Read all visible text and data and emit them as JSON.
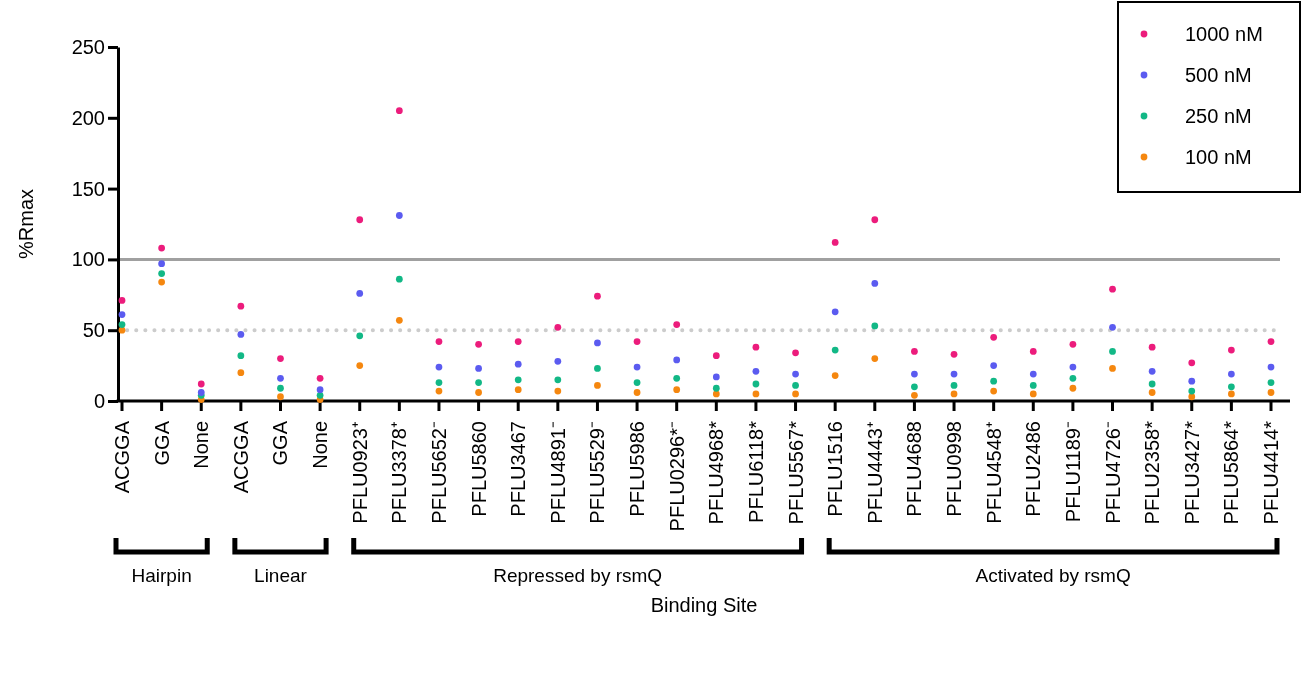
{
  "chart_data": {
    "type": "scatter",
    "xlabel": "Binding Site",
    "ylabel": "%Rmax",
    "categories": [
      "ACGGA",
      "GGA",
      "None",
      "ACGGA",
      "GGA",
      "None",
      "PFLU0923⁺",
      "PFLU3378⁺",
      "PFLU5652⁻",
      "PFLU5860",
      "PFLU3467",
      "PFLU4891⁻",
      "PFLU5529⁻",
      "PFLU5986",
      "PFLU0296*⁻",
      "PFLU4968*",
      "PFLU6118*",
      "PFLU5567*",
      "PFLU1516",
      "PFLU4443⁺",
      "PFLU4688",
      "PFLU0998",
      "PFLU4548⁺",
      "PFLU2486",
      "PFLU1189⁻",
      "PFLU4726⁻",
      "PFLU2358*",
      "PFLU3427*",
      "PFLU5864*",
      "PFLU4414*"
    ],
    "series": [
      {
        "name": "1000 nM",
        "color": "#ec1c7c",
        "values": [
          71,
          108,
          12,
          67,
          30,
          16,
          128,
          205,
          42,
          40,
          42,
          52,
          74,
          42,
          54,
          32,
          38,
          34,
          112,
          128,
          35,
          33,
          45,
          35,
          40,
          79,
          38,
          27,
          36,
          42
        ]
      },
      {
        "name": "500 nM",
        "color": "#5b5bf0",
        "values": [
          61,
          97,
          6,
          47,
          16,
          8,
          76,
          131,
          24,
          23,
          26,
          28,
          41,
          24,
          29,
          17,
          21,
          19,
          63,
          83,
          19,
          19,
          25,
          19,
          24,
          52,
          21,
          14,
          19,
          24
        ]
      },
      {
        "name": "250 nM",
        "color": "#12b886",
        "values": [
          54,
          90,
          4,
          32,
          9,
          4,
          46,
          86,
          13,
          13,
          15,
          15,
          23,
          13,
          16,
          9,
          12,
          11,
          36,
          53,
          10,
          11,
          14,
          11,
          16,
          35,
          12,
          7,
          10,
          13
        ]
      },
      {
        "name": "100 nM",
        "color": "#f5870f",
        "values": [
          50,
          84,
          1,
          20,
          3,
          1,
          25,
          57,
          7,
          6,
          8,
          7,
          11,
          6,
          8,
          5,
          5,
          5,
          18,
          30,
          4,
          5,
          7,
          5,
          9,
          23,
          6,
          3,
          5,
          6
        ]
      }
    ],
    "ylim": [
      0,
      250
    ],
    "yticks": [
      0,
      50,
      100,
      150,
      200,
      250
    ],
    "ref_lines": [
      {
        "axis": "y",
        "value": 100,
        "color": "#a0a0a0",
        "line_style": "solid"
      },
      {
        "axis": "y",
        "value": 50,
        "color": "#cccccc",
        "line_style": "dotted"
      }
    ],
    "annotations": [
      "Hairpin",
      "Linear",
      "Repressed by rsmQ",
      "Activated by rsmQ"
    ],
    "legend": "top right",
    "marker": "circle",
    "grid": false
  }
}
